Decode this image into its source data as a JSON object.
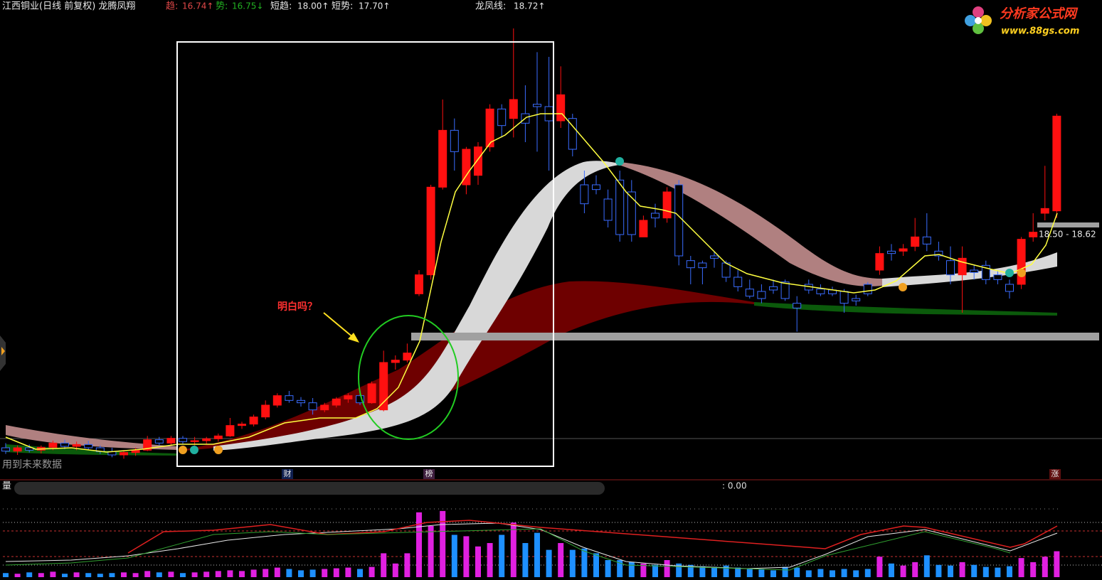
{
  "header": {
    "title": "江西铜业(日线 前复权) 龙腾凤翔",
    "items": [
      {
        "label": "趋:",
        "value": "16.74↑"
      },
      {
        "label": "势:",
        "value": "16.75↓"
      },
      {
        "label": "短趋:",
        "value": "18.00↑"
      },
      {
        "label": "短势:",
        "value": "17.70↑"
      },
      {
        "label": "龙凤线:",
        "value": "18.72↑"
      }
    ]
  },
  "logo": {
    "name": "分析家公式网",
    "url": "www.88gs.com"
  },
  "annotation": "明白吗？",
  "footnote": "用到未来数据",
  "markers": [
    "财",
    "榜",
    "涨"
  ],
  "price_range_label": "18.50 - 18.62",
  "volume_pane": {
    "title": "量",
    "readout": ": 0.00"
  },
  "price_ylim": [
    13.6,
    23.2
  ],
  "volume_ylim": [
    0,
    100
  ],
  "candles": [
    [
      14.05,
      14.15,
      13.92,
      13.98
    ],
    [
      13.98,
      14.1,
      13.9,
      14.05
    ],
    [
      14.05,
      14.12,
      13.95,
      14.0
    ],
    [
      14.0,
      14.1,
      13.93,
      14.06
    ],
    [
      14.06,
      14.2,
      14.0,
      14.15
    ],
    [
      14.15,
      14.22,
      14.02,
      14.08
    ],
    [
      14.08,
      14.18,
      14.0,
      14.12
    ],
    [
      14.12,
      14.2,
      14.0,
      14.05
    ],
    [
      14.05,
      14.1,
      13.92,
      13.97
    ],
    [
      13.97,
      14.05,
      13.85,
      13.9
    ],
    [
      13.9,
      14.0,
      13.82,
      13.95
    ],
    [
      13.95,
      14.05,
      13.88,
      14.0
    ],
    [
      14.0,
      14.3,
      13.98,
      14.22
    ],
    [
      14.22,
      14.28,
      14.1,
      14.15
    ],
    [
      14.15,
      14.3,
      14.1,
      14.25
    ],
    [
      14.25,
      14.3,
      14.12,
      14.18
    ],
    [
      14.18,
      14.28,
      14.1,
      14.2
    ],
    [
      14.2,
      14.28,
      14.12,
      14.24
    ],
    [
      14.24,
      14.35,
      14.18,
      14.3
    ],
    [
      14.3,
      14.68,
      14.28,
      14.52
    ],
    [
      14.52,
      14.6,
      14.45,
      14.55
    ],
    [
      14.55,
      14.75,
      14.5,
      14.7
    ],
    [
      14.7,
      15.05,
      14.65,
      14.95
    ],
    [
      14.95,
      15.2,
      14.9,
      15.15
    ],
    [
      15.15,
      15.25,
      15.0,
      15.05
    ],
    [
      15.05,
      15.12,
      14.92,
      15.0
    ],
    [
      15.0,
      15.1,
      14.75,
      14.85
    ],
    [
      14.85,
      15.0,
      14.8,
      14.95
    ],
    [
      14.95,
      15.12,
      14.9,
      15.08
    ],
    [
      15.08,
      15.2,
      15.0,
      15.15
    ],
    [
      15.15,
      15.22,
      14.95,
      15.0
    ],
    [
      15.0,
      15.45,
      14.98,
      15.4
    ],
    [
      14.85,
      16.1,
      14.82,
      15.85
    ],
    [
      15.85,
      16.0,
      15.7,
      15.9
    ],
    [
      15.9,
      16.25,
      15.85,
      16.05
    ],
    [
      17.3,
      17.8,
      17.25,
      17.7
    ],
    [
      17.7,
      19.6,
      17.6,
      19.55
    ],
    [
      19.55,
      21.4,
      19.5,
      20.75
    ],
    [
      20.75,
      21.0,
      19.9,
      20.3
    ],
    [
      19.6,
      20.4,
      19.4,
      20.35
    ],
    [
      19.8,
      20.5,
      19.6,
      20.4
    ],
    [
      20.4,
      21.3,
      20.3,
      21.2
    ],
    [
      21.2,
      21.3,
      20.6,
      20.85
    ],
    [
      21.0,
      22.9,
      20.6,
      21.4
    ],
    [
      21.1,
      21.7,
      20.5,
      20.9
    ],
    [
      21.3,
      22.4,
      20.3,
      21.25
    ],
    [
      21.25,
      22.3,
      19.9,
      20.95
    ],
    [
      20.95,
      22.1,
      20.8,
      21.5
    ],
    [
      21.0,
      21.1,
      20.2,
      20.35
    ],
    [
      19.6,
      19.9,
      19.0,
      19.2
    ],
    [
      19.6,
      19.8,
      19.4,
      19.5
    ],
    [
      19.3,
      19.5,
      18.7,
      18.85
    ],
    [
      19.7,
      19.9,
      18.4,
      18.55
    ],
    [
      19.45,
      19.7,
      18.4,
      18.55
    ],
    [
      18.5,
      18.95,
      18.5,
      18.85
    ],
    [
      19.0,
      19.2,
      18.7,
      18.9
    ],
    [
      18.9,
      19.55,
      18.8,
      19.45
    ],
    [
      19.6,
      19.7,
      17.9,
      18.1
    ],
    [
      18.0,
      18.1,
      17.5,
      17.85
    ],
    [
      17.95,
      18.0,
      17.5,
      17.85
    ],
    [
      18.1,
      18.2,
      17.85,
      18.05
    ],
    [
      17.95,
      18.0,
      17.55,
      17.65
    ],
    [
      17.65,
      17.8,
      17.35,
      17.45
    ],
    [
      17.4,
      17.6,
      17.2,
      17.25
    ],
    [
      17.35,
      17.5,
      17.1,
      17.2
    ],
    [
      17.45,
      17.6,
      17.3,
      17.38
    ],
    [
      17.55,
      17.6,
      17.15,
      17.2
    ],
    [
      17.1,
      17.25,
      16.5,
      17.0
    ],
    [
      17.5,
      17.6,
      17.3,
      17.38
    ],
    [
      17.4,
      17.5,
      17.25,
      17.3
    ],
    [
      17.38,
      17.45,
      17.25,
      17.3
    ],
    [
      17.35,
      17.4,
      16.9,
      17.1
    ],
    [
      17.2,
      17.28,
      17.05,
      17.15
    ],
    [
      17.5,
      17.55,
      17.25,
      17.3
    ],
    [
      17.8,
      18.3,
      17.7,
      18.15
    ],
    [
      18.2,
      18.35,
      18.0,
      18.15
    ],
    [
      18.2,
      18.35,
      18.1,
      18.25
    ],
    [
      18.3,
      18.9,
      18.2,
      18.5
    ],
    [
      18.5,
      19.0,
      18.2,
      18.35
    ],
    [
      18.2,
      18.4,
      18.0,
      18.1
    ],
    [
      18.0,
      18.3,
      17.5,
      17.7
    ],
    [
      17.7,
      18.3,
      16.9,
      18.05
    ],
    [
      17.8,
      17.9,
      17.6,
      17.75
    ],
    [
      17.9,
      18.0,
      17.5,
      17.6
    ],
    [
      17.7,
      17.8,
      17.5,
      17.6
    ],
    [
      17.5,
      17.6,
      17.2,
      17.35
    ],
    [
      17.5,
      18.5,
      17.4,
      18.45
    ],
    [
      18.5,
      19.0,
      18.4,
      18.6
    ],
    [
      19.0,
      20.0,
      18.85,
      19.1
    ],
    [
      19.05,
      21.1,
      18.9,
      21.05
    ]
  ],
  "volume": [
    6,
    5,
    7,
    6,
    8,
    5,
    7,
    6,
    5,
    6,
    7,
    6,
    9,
    7,
    8,
    6,
    7,
    8,
    9,
    10,
    9,
    11,
    12,
    14,
    12,
    10,
    11,
    12,
    13,
    14,
    12,
    15,
    35,
    20,
    35,
    95,
    75,
    97,
    62,
    60,
    45,
    50,
    62,
    80,
    50,
    65,
    40,
    50,
    40,
    42,
    35,
    25,
    25,
    22,
    20,
    18,
    25,
    20,
    18,
    16,
    15,
    17,
    14,
    12,
    12,
    10,
    15,
    14,
    10,
    12,
    10,
    12,
    10,
    12,
    30,
    20,
    17,
    22,
    32,
    18,
    17,
    22,
    18,
    15,
    14,
    16,
    28,
    22,
    30,
    38
  ]
}
